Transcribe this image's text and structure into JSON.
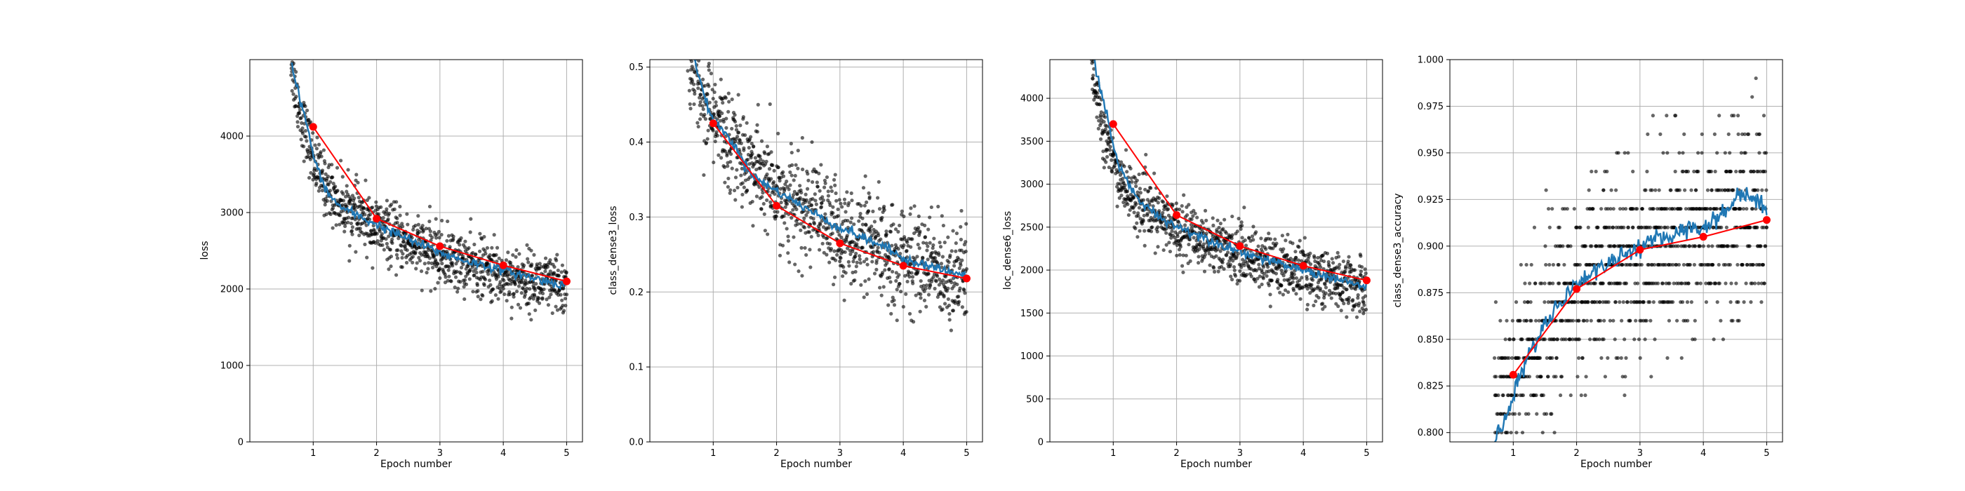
{
  "figure": {
    "background": "#ffffff"
  },
  "colors": {
    "scatter": "#000000",
    "smooth": "#1f77b4",
    "epoch_line": "#ff0000",
    "grid": "#b0b0b0"
  },
  "chart_data": [
    {
      "type": "line",
      "xlabel": "Epoch number",
      "ylabel": "loss",
      "xlim": [
        0,
        5.25
      ],
      "ylim": [
        0,
        5000
      ],
      "xticks": [
        "1",
        "2",
        "3",
        "4",
        "5"
      ],
      "yticks": [
        "0",
        "1000",
        "2000",
        "3000",
        "4000"
      ],
      "grid": true,
      "series": [
        {
          "role": "scatter-per-batch",
          "x": [
            0.65,
            0.7,
            0.75,
            0.8,
            0.85,
            0.9,
            0.95,
            1.0,
            1.1,
            1.2,
            1.3,
            1.4,
            1.5,
            1.6,
            1.7,
            1.8,
            1.9,
            2.0,
            2.2,
            2.4,
            2.6,
            2.8,
            3.0,
            3.2,
            3.4,
            3.6,
            3.8,
            4.0,
            4.2,
            4.4,
            4.6,
            4.8,
            5.0
          ],
          "y": [
            5000,
            4700,
            4500,
            4300,
            4150,
            4000,
            3850,
            3700,
            3500,
            3350,
            3250,
            3150,
            3080,
            3020,
            2960,
            2900,
            2850,
            2800,
            2720,
            2640,
            2570,
            2500,
            2440,
            2380,
            2330,
            2280,
            2230,
            2190,
            2150,
            2110,
            2070,
            2030,
            1990
          ],
          "spread": 350
        },
        {
          "role": "smoothed",
          "x": [
            0.65,
            0.7,
            0.8,
            0.9,
            1.0,
            1.1,
            1.2,
            1.3,
            1.4,
            1.5,
            1.6,
            1.7,
            1.8,
            1.9,
            2.0,
            2.2,
            2.4,
            2.6,
            2.8,
            3.0,
            3.2,
            3.4,
            3.6,
            3.8,
            4.0,
            4.2,
            4.4,
            4.6,
            4.8,
            5.0
          ],
          "y": [
            5000,
            4800,
            4450,
            4150,
            3750,
            3500,
            3300,
            3180,
            3100,
            3040,
            3000,
            2960,
            2920,
            2880,
            2850,
            2760,
            2690,
            2610,
            2550,
            2480,
            2420,
            2370,
            2330,
            2290,
            2250,
            2200,
            2160,
            2120,
            2080,
            2050
          ]
        },
        {
          "role": "epoch-mean",
          "x": [
            1,
            2,
            3,
            4,
            5
          ],
          "y": [
            4120,
            2920,
            2560,
            2310,
            2100
          ]
        }
      ]
    },
    {
      "type": "line",
      "xlabel": "Epoch number",
      "ylabel": "class_dense3_loss",
      "xlim": [
        0,
        5.25
      ],
      "ylim": [
        0,
        0.51
      ],
      "xticks": [
        "1",
        "2",
        "3",
        "4",
        "5"
      ],
      "yticks": [
        "0.0",
        "0.1",
        "0.2",
        "0.3",
        "0.4",
        "0.5"
      ],
      "grid": true,
      "series": [
        {
          "role": "scatter-per-batch",
          "x": [
            0.6,
            0.7,
            0.8,
            0.9,
            1.0,
            1.2,
            1.4,
            1.6,
            1.8,
            2.0,
            2.2,
            2.4,
            2.6,
            2.8,
            3.0,
            3.2,
            3.4,
            3.6,
            3.8,
            4.0,
            4.2,
            4.4,
            4.6,
            4.8,
            5.0
          ],
          "y": [
            0.51,
            0.49,
            0.47,
            0.45,
            0.43,
            0.41,
            0.39,
            0.37,
            0.35,
            0.33,
            0.32,
            0.31,
            0.3,
            0.29,
            0.28,
            0.27,
            0.265,
            0.255,
            0.25,
            0.245,
            0.24,
            0.235,
            0.23,
            0.225,
            0.22
          ],
          "spread": 0.06
        },
        {
          "role": "smoothed",
          "x": [
            0.7,
            0.8,
            0.9,
            1.0,
            1.1,
            1.2,
            1.3,
            1.4,
            1.5,
            1.6,
            1.7,
            1.8,
            1.9,
            2.0,
            2.2,
            2.4,
            2.6,
            2.8,
            3.0,
            3.2,
            3.4,
            3.6,
            3.8,
            4.0,
            4.2,
            4.4,
            4.6,
            4.8,
            5.0
          ],
          "y": [
            0.51,
            0.48,
            0.45,
            0.43,
            0.42,
            0.41,
            0.4,
            0.385,
            0.37,
            0.36,
            0.35,
            0.345,
            0.34,
            0.335,
            0.325,
            0.315,
            0.305,
            0.295,
            0.285,
            0.28,
            0.27,
            0.265,
            0.255,
            0.245,
            0.24,
            0.235,
            0.23,
            0.225,
            0.22
          ]
        },
        {
          "role": "epoch-mean",
          "x": [
            1,
            2,
            3,
            4,
            5
          ],
          "y": [
            0.425,
            0.315,
            0.265,
            0.235,
            0.218
          ]
        }
      ]
    },
    {
      "type": "line",
      "xlabel": "Epoch number",
      "ylabel": "loc_dense6_loss",
      "xlim": [
        0,
        5.25
      ],
      "ylim": [
        0,
        4450
      ],
      "xticks": [
        "1",
        "2",
        "3",
        "4",
        "5"
      ],
      "yticks": [
        "0",
        "500",
        "1000",
        "1500",
        "2000",
        "2500",
        "3000",
        "3500",
        "4000"
      ],
      "grid": true,
      "series": [
        {
          "role": "scatter-per-batch",
          "x": [
            0.65,
            0.7,
            0.75,
            0.8,
            0.85,
            0.9,
            0.95,
            1.0,
            1.1,
            1.2,
            1.3,
            1.4,
            1.5,
            1.6,
            1.7,
            1.8,
            1.9,
            2.0,
            2.2,
            2.4,
            2.6,
            2.8,
            3.0,
            3.2,
            3.4,
            3.6,
            3.8,
            4.0,
            4.2,
            4.4,
            4.6,
            4.8,
            5.0
          ],
          "y": [
            4450,
            4200,
            4000,
            3800,
            3650,
            3500,
            3380,
            3250,
            3080,
            2950,
            2850,
            2780,
            2720,
            2670,
            2620,
            2580,
            2540,
            2500,
            2430,
            2370,
            2310,
            2250,
            2200,
            2150,
            2100,
            2060,
            2020,
            1980,
            1940,
            1900,
            1860,
            1820,
            1780
          ],
          "spread": 300
        },
        {
          "role": "smoothed",
          "x": [
            0.7,
            0.8,
            0.9,
            1.0,
            1.1,
            1.2,
            1.3,
            1.4,
            1.5,
            1.6,
            1.7,
            1.8,
            1.9,
            2.0,
            2.2,
            2.4,
            2.6,
            2.8,
            3.0,
            3.2,
            3.4,
            3.6,
            3.8,
            4.0,
            4.2,
            4.4,
            4.6,
            4.8,
            5.0
          ],
          "y": [
            4450,
            4100,
            3800,
            3450,
            3200,
            3050,
            2920,
            2820,
            2750,
            2690,
            2640,
            2590,
            2550,
            2510,
            2450,
            2390,
            2330,
            2270,
            2220,
            2170,
            2120,
            2080,
            2040,
            2000,
            1960,
            1920,
            1880,
            1840,
            1800
          ]
        },
        {
          "role": "epoch-mean",
          "x": [
            1,
            2,
            3,
            4,
            5
          ],
          "y": [
            3700,
            2640,
            2280,
            2050,
            1880
          ]
        }
      ]
    },
    {
      "type": "line",
      "xlabel": "Epoch number",
      "ylabel": "class_dense3_accuracy",
      "xlim": [
        0,
        5.25
      ],
      "ylim": [
        0.795,
        1.0
      ],
      "xticks": [
        "1",
        "2",
        "3",
        "4",
        "5"
      ],
      "yticks": [
        "0.800",
        "0.825",
        "0.850",
        "0.875",
        "0.900",
        "0.925",
        "0.950",
        "0.975",
        "1.000"
      ],
      "grid": true,
      "series": [
        {
          "role": "scatter-per-batch",
          "x": [
            0.7,
            0.8,
            0.9,
            1.0,
            1.2,
            1.4,
            1.6,
            1.8,
            2.0,
            2.2,
            2.4,
            2.6,
            2.8,
            3.0,
            3.2,
            3.4,
            3.6,
            3.8,
            4.0,
            4.2,
            4.4,
            4.6,
            4.8,
            5.0
          ],
          "y": [
            0.81,
            0.815,
            0.82,
            0.825,
            0.84,
            0.85,
            0.86,
            0.87,
            0.875,
            0.88,
            0.885,
            0.89,
            0.89,
            0.895,
            0.9,
            0.9,
            0.905,
            0.905,
            0.91,
            0.91,
            0.915,
            0.915,
            0.92,
            0.92
          ],
          "spread": 0.045
        },
        {
          "role": "smoothed",
          "x": [
            0.7,
            0.8,
            0.9,
            1.0,
            1.1,
            1.2,
            1.3,
            1.4,
            1.5,
            1.6,
            1.7,
            1.8,
            1.9,
            2.0,
            2.2,
            2.4,
            2.6,
            2.8,
            3.0,
            3.2,
            3.4,
            3.6,
            3.8,
            4.0,
            4.2,
            4.4,
            4.6,
            4.8,
            5.0
          ],
          "y": [
            0.795,
            0.8,
            0.81,
            0.82,
            0.83,
            0.838,
            0.845,
            0.852,
            0.858,
            0.864,
            0.868,
            0.872,
            0.876,
            0.88,
            0.885,
            0.889,
            0.893,
            0.896,
            0.9,
            0.902,
            0.905,
            0.907,
            0.91,
            0.91,
            0.915,
            0.92,
            0.93,
            0.925,
            0.92
          ]
        },
        {
          "role": "epoch-mean",
          "x": [
            1,
            2,
            3,
            4,
            5
          ],
          "y": [
            0.831,
            0.877,
            0.898,
            0.905,
            0.914
          ]
        }
      ]
    }
  ]
}
